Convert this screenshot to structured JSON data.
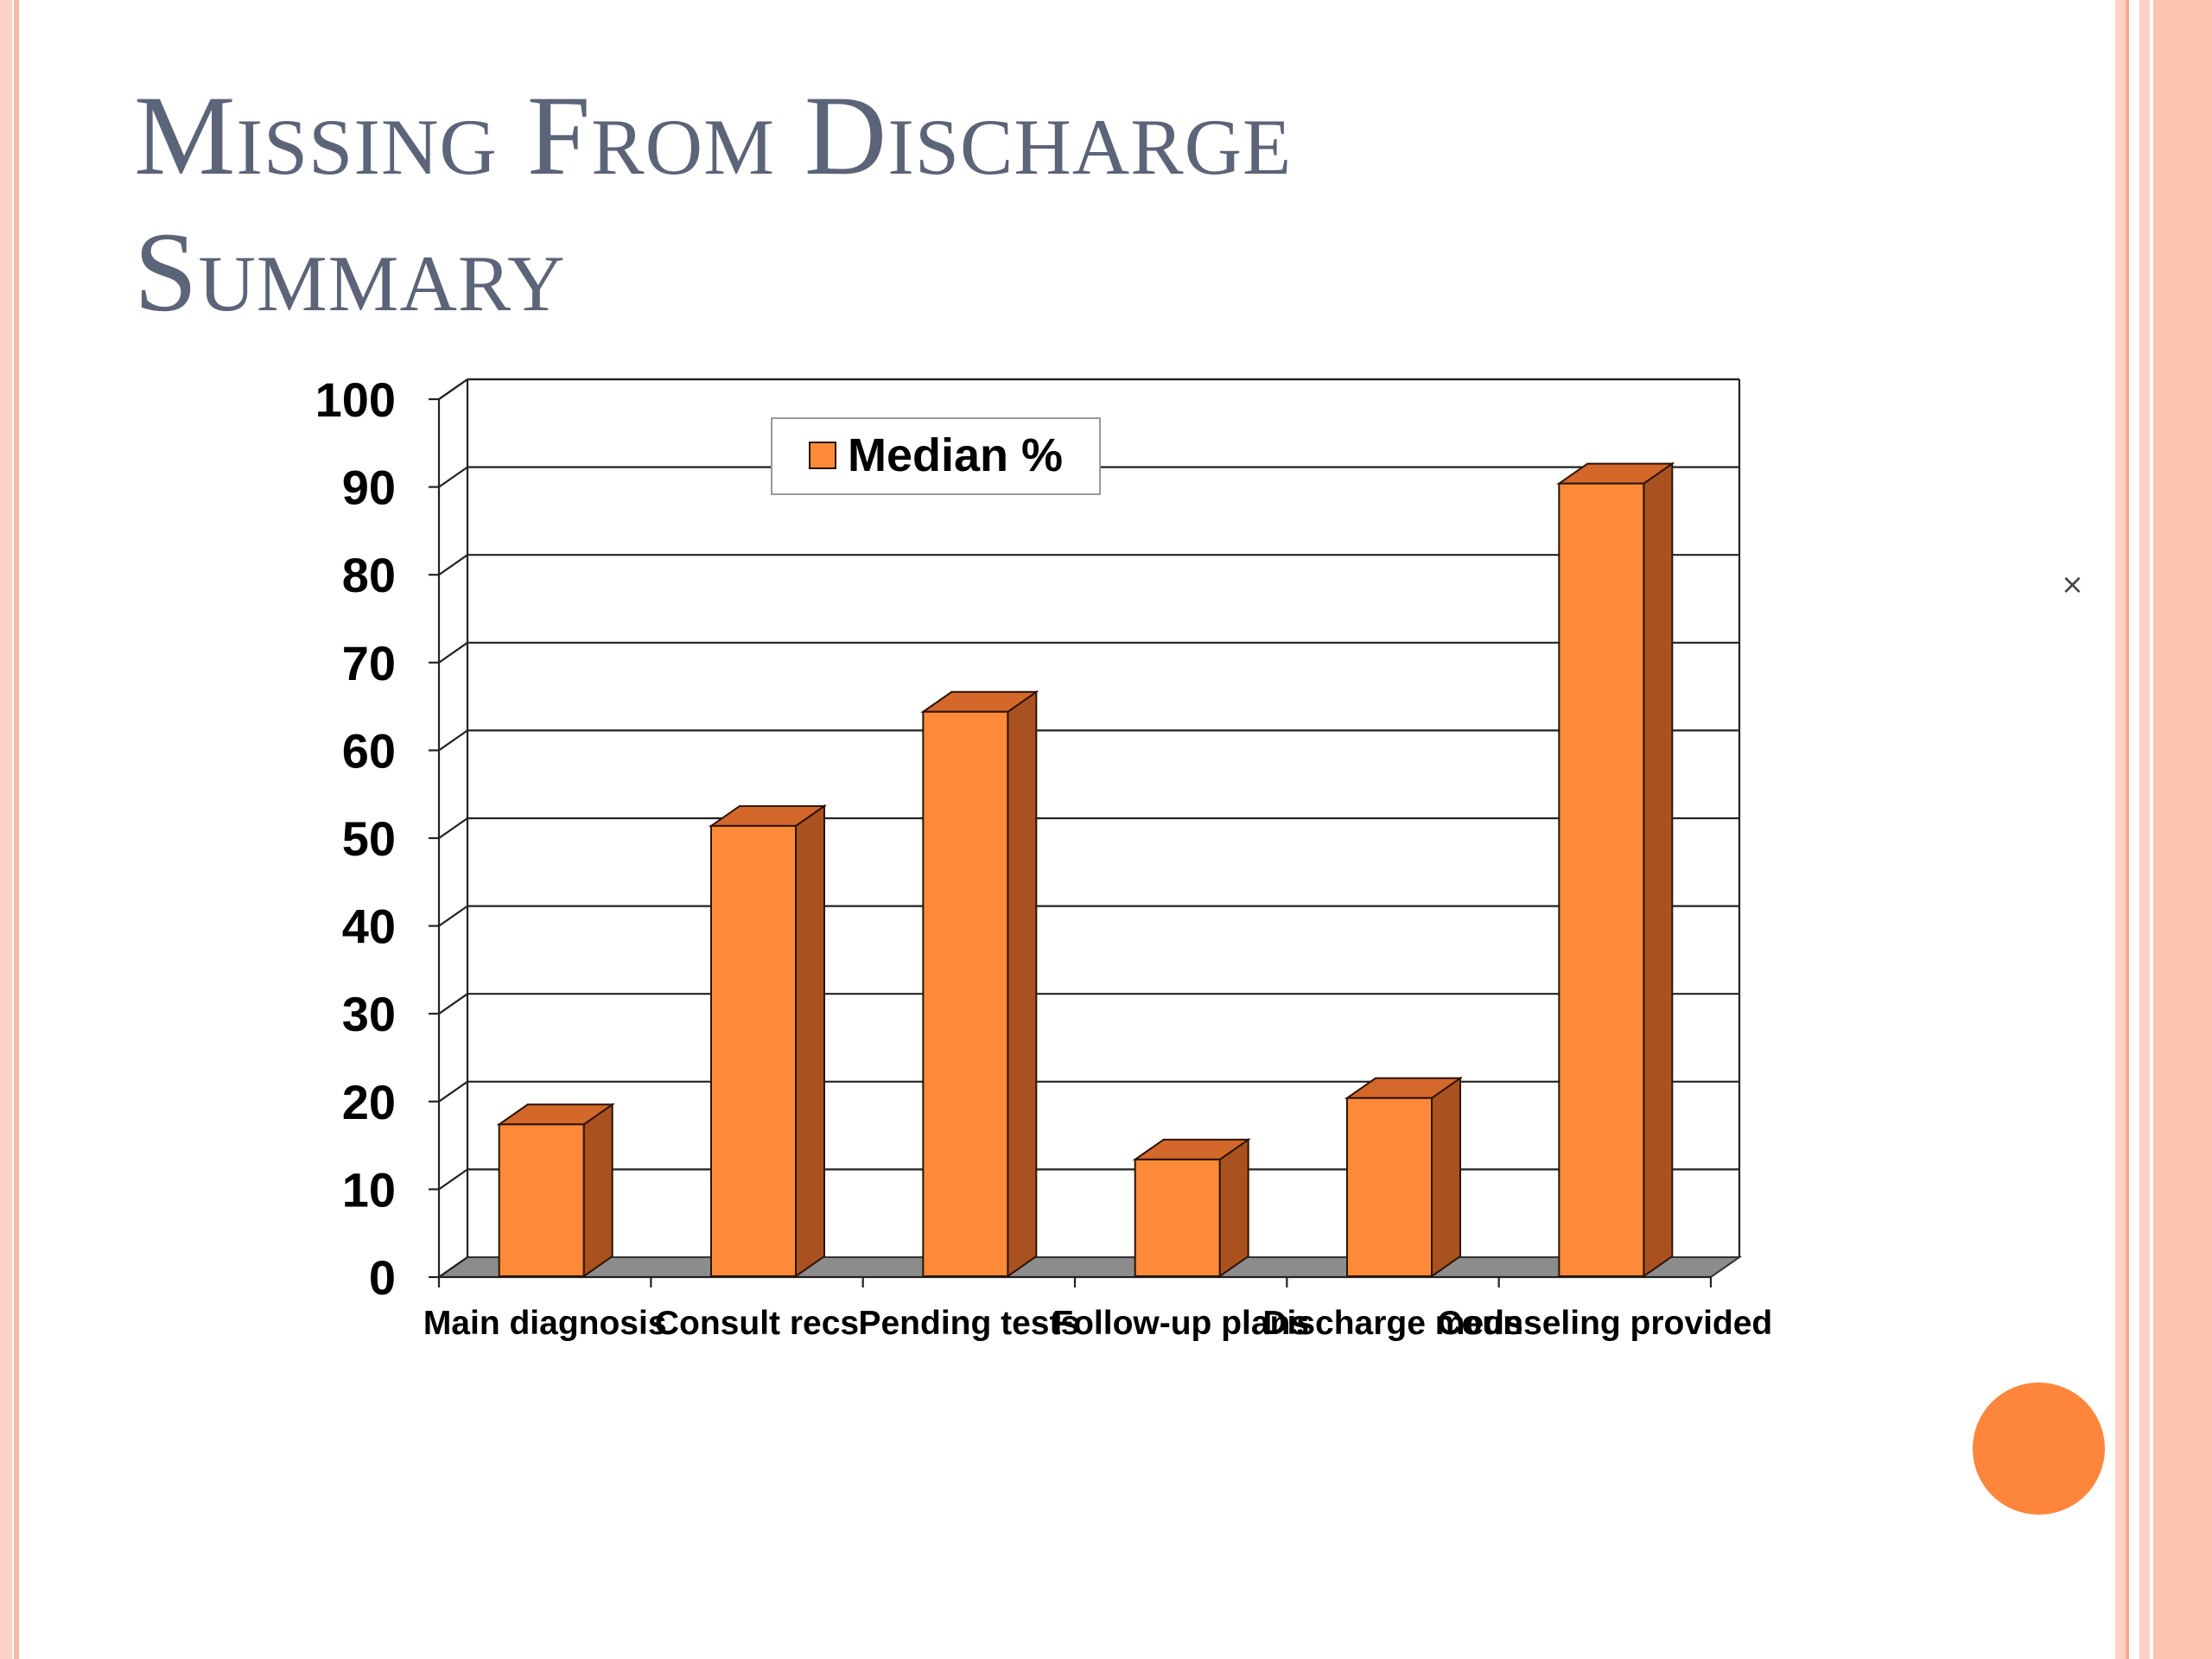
{
  "slide": {
    "title_line1": "Missing From Discharge",
    "title_line2": "Summary",
    "close_glyph": "×"
  },
  "colors": {
    "accent": "#fd863c",
    "bar_front": "#fd8a38",
    "bar_side": "#a9521f",
    "bar_top": "#d4672a",
    "floor": "#8c8c8c",
    "title": "#5b6478",
    "border_light": "#fbd2c3",
    "border_mid": "#f8b9a2"
  },
  "chart_data": {
    "type": "bar",
    "title": "",
    "xlabel": "",
    "ylabel": "",
    "categories": [
      "Main diagnosis",
      "Consult recs",
      "Pending tests",
      "Follow-up plans",
      "Discharge meds",
      "Counseling provided"
    ],
    "series": [
      {
        "name": "Median %",
        "values": [
          17,
          51,
          64,
          13,
          20,
          90
        ]
      }
    ],
    "ylim": [
      0,
      100
    ],
    "yticks": [
      0,
      10,
      20,
      30,
      40,
      50,
      60,
      70,
      80,
      90,
      100
    ],
    "grid": true,
    "legend_position": "top-center",
    "style": "3d-column"
  }
}
